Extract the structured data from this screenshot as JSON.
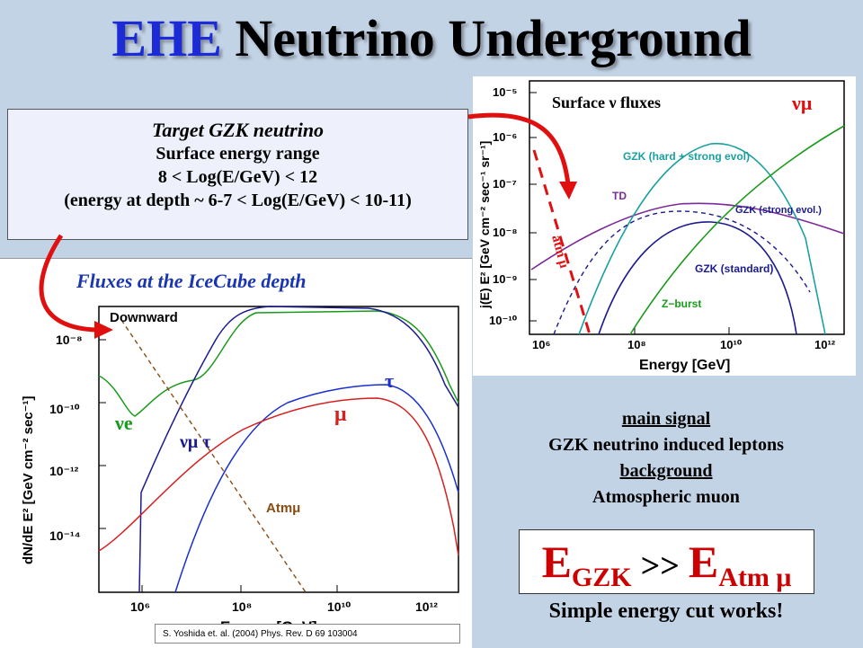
{
  "title": {
    "highlight": "EHE",
    "rest": " Neutrino Underground"
  },
  "target_box": {
    "heading": "Target GZK neutrino",
    "line1": "Surface energy range",
    "line2": "8 < Log(E/GeV) < 12",
    "line3": "(energy at depth ~ 6-7 < Log(E/GeV) < 10-11)"
  },
  "left_plot": {
    "heading": "Fluxes at the IceCube depth",
    "ylabel": "dN/dE E² [GeV cm⁻² sec⁻¹]",
    "xlabel": "Energy [GeV]",
    "yticks": [
      "10⁻⁸",
      "10⁻¹⁰",
      "10⁻¹²",
      "10⁻¹⁴"
    ],
    "xticks": [
      "10⁶",
      "10⁸",
      "10¹⁰",
      "10¹²"
    ],
    "labels": {
      "downward": "Downward",
      "nue": "νe",
      "numutau": "νμ τ",
      "tau": "τ",
      "mu": "μ",
      "atm": "Atmμ"
    },
    "colors": {
      "nue": "#1a9a1a",
      "numutau": "#1b1b8f",
      "tau": "#1a2fd0",
      "mu": "#d61f1f",
      "atm": "#8a4b12"
    }
  },
  "right_plot": {
    "heading": "Surface ν fluxes",
    "tag": "νμ",
    "ylabel": "j(E) E² [GeV cm⁻² sec⁻¹ sr⁻¹]",
    "xlabel": "Energy [GeV]",
    "yticks": [
      "10⁻⁵",
      "10⁻⁶",
      "10⁻⁷",
      "10⁻⁸",
      "10⁻⁹",
      "10⁻¹⁰"
    ],
    "xticks": [
      "10⁶",
      "10⁸",
      "10¹⁰",
      "10¹²"
    ],
    "labels": {
      "gzk_hard": "GZK (hard + strong evol)",
      "td": "TD",
      "gzk_strong": "GZK (strong evol.)",
      "gzk_std": "GZK (standard)",
      "zburst": "Z−burst",
      "atm": "atm μ"
    },
    "colors": {
      "gzk_hard": "#1aa0a0",
      "td": "#7a2a9a",
      "gzk_strong": "#1b1b8f",
      "gzk_std": "#1b1b8f",
      "zburst": "#1a9a1a",
      "atm": "#d61f1f"
    }
  },
  "signal": {
    "main_label": "main signal",
    "main_text": "GZK neutrino induced leptons",
    "bg_label": "background",
    "bg_text": "Atmospheric muon"
  },
  "energy_cut": {
    "e1": "E",
    "s1": "GZK",
    "op": ">>",
    "e2": "E",
    "s2": "Atm μ"
  },
  "cut_note": "Simple energy cut works!",
  "citation": "S. Yoshida et. al. (2004) Phys. Rev. D 69 103004"
}
